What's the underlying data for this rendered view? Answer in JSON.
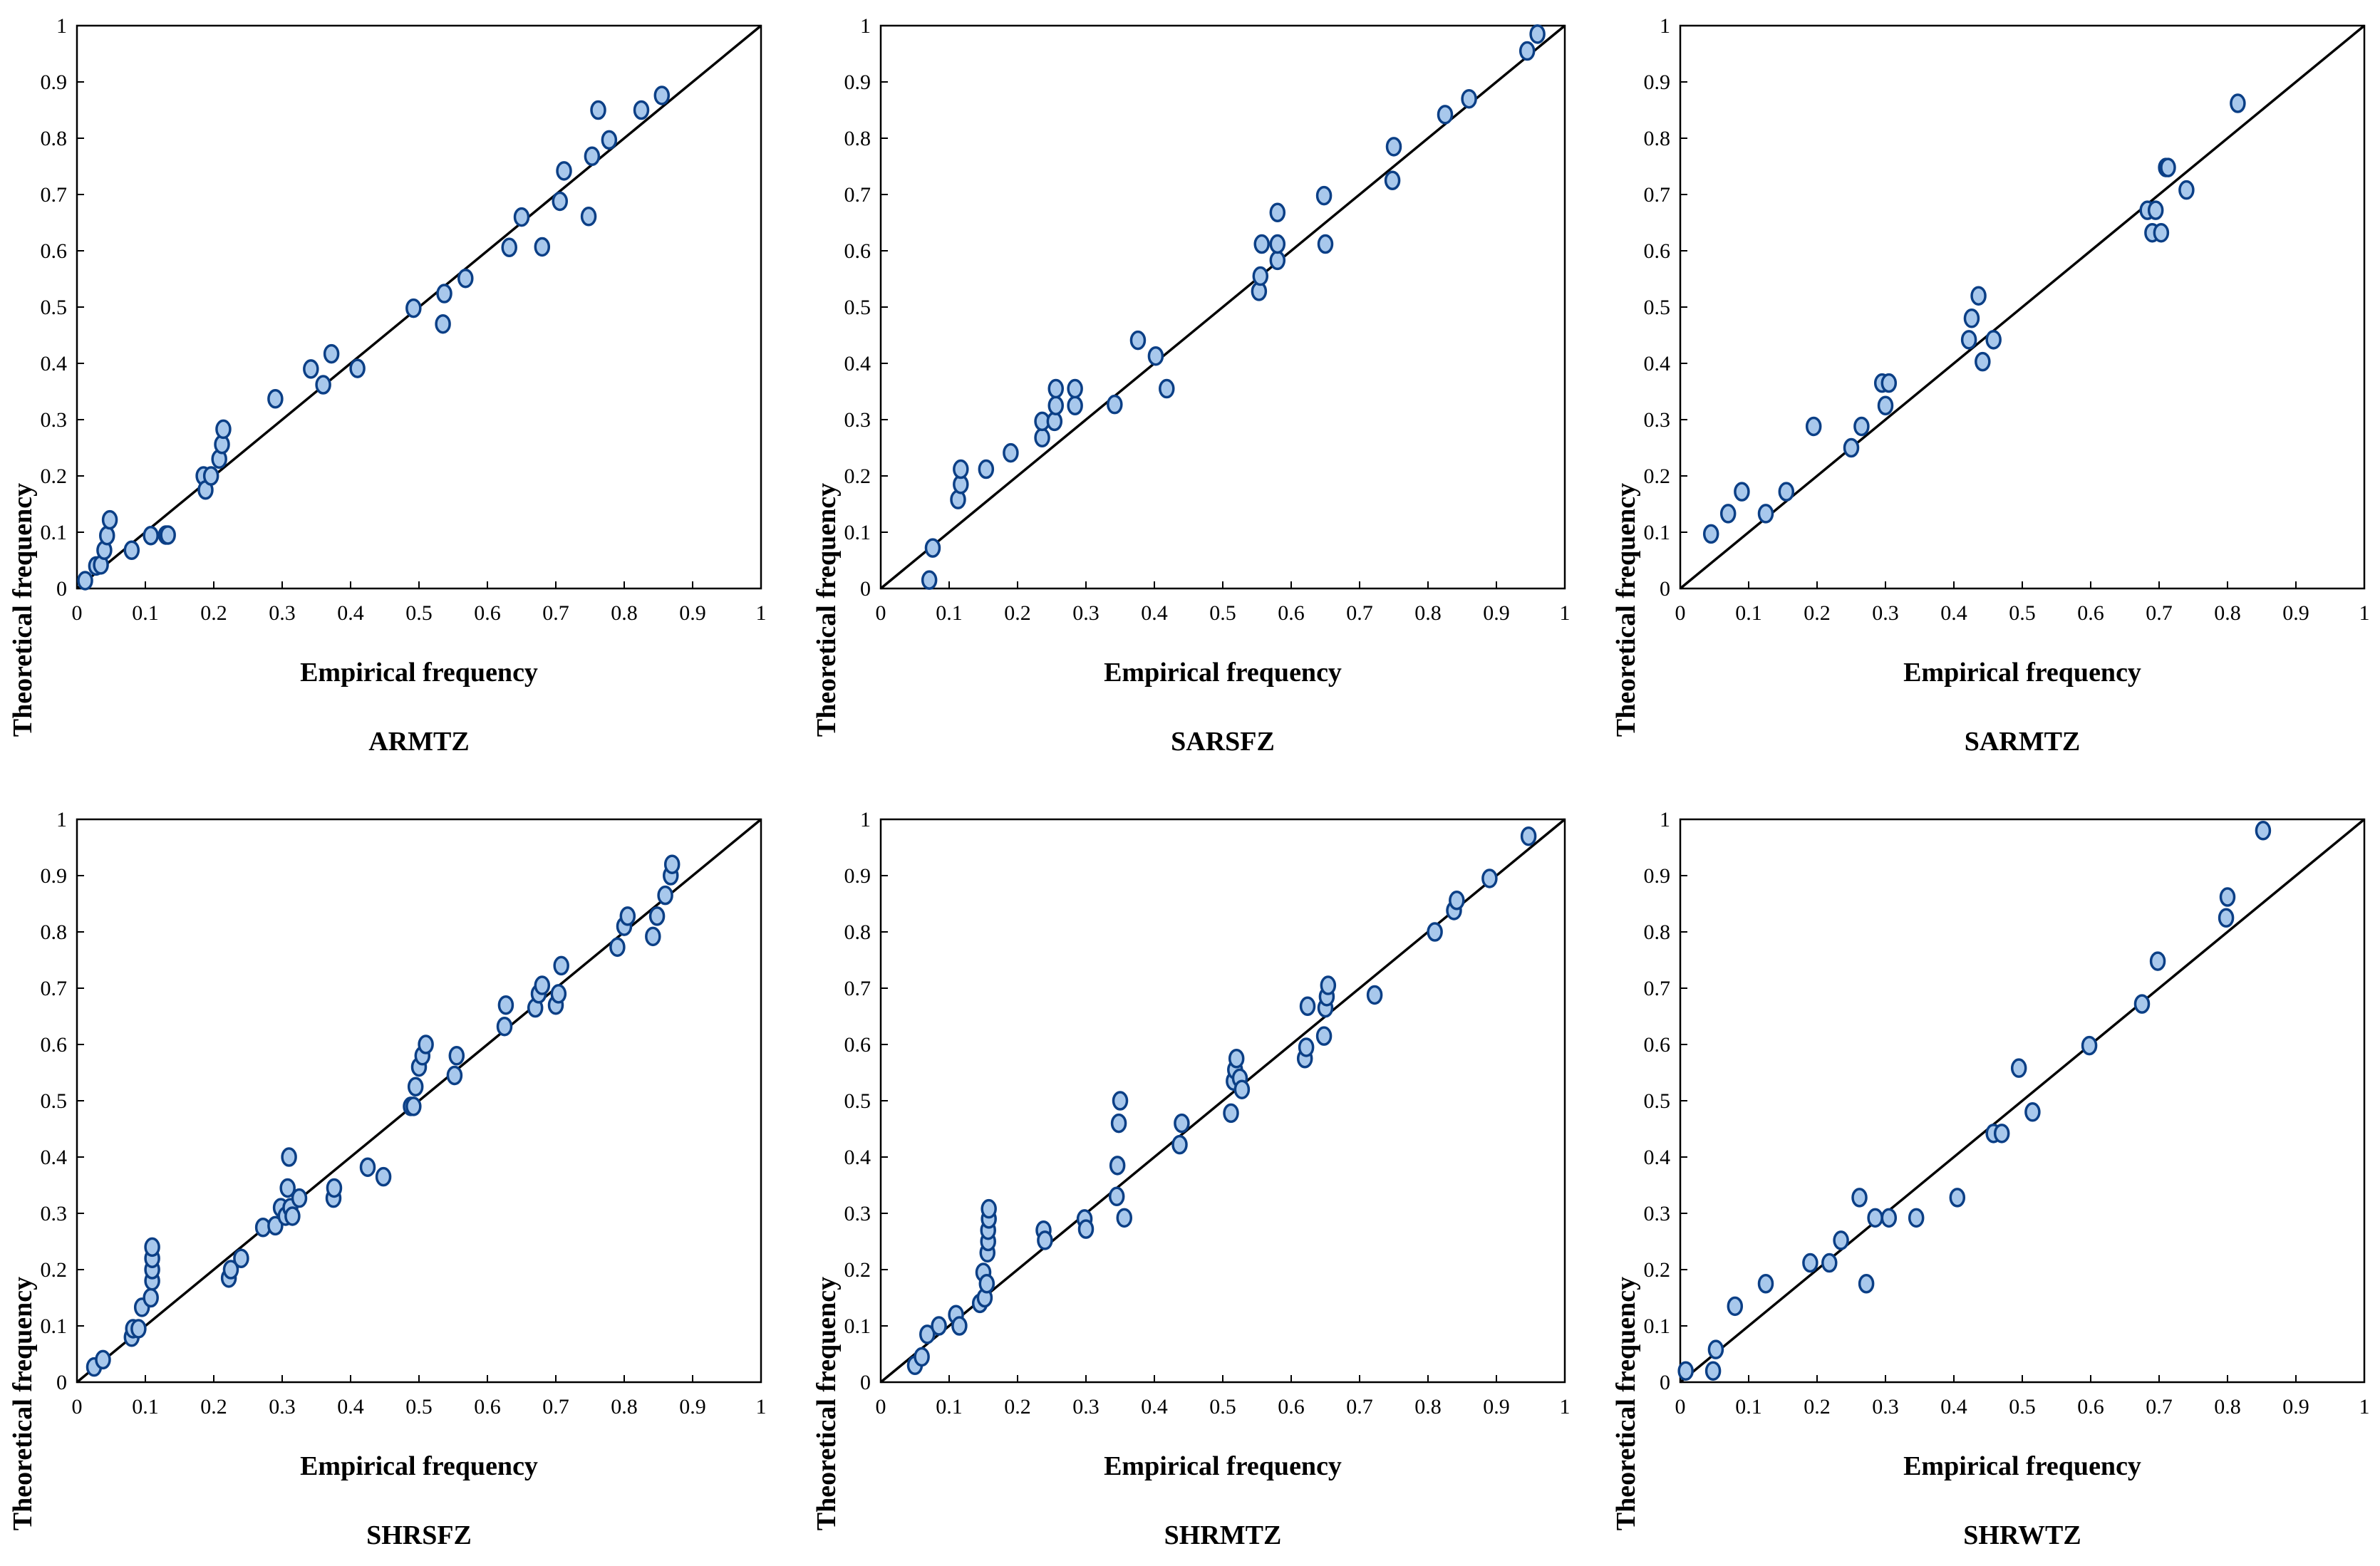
{
  "colors": {
    "marker_fill": "#a8c8ec",
    "marker_stroke": "#0b3f86",
    "line": "#000000",
    "axis": "#000000"
  },
  "chart_data": [
    {
      "type": "scatter",
      "title": "ARMTZ",
      "xlabel": "Empirical frequency",
      "ylabel": "Theoretical frequency",
      "xlim": [
        0,
        1
      ],
      "ylim": [
        0,
        1
      ],
      "xticks": [
        "0",
        "0.1",
        "0.2",
        "0.3",
        "0.4",
        "0.5",
        "0.6",
        "0.7",
        "0.8",
        "0.9",
        "1"
      ],
      "yticks": [
        "0",
        "0.1",
        "0.2",
        "0.3",
        "0.4",
        "0.5",
        "0.6",
        "0.7",
        "0.8",
        "0.9",
        "1"
      ],
      "reference_line": "y = x",
      "points": [
        [
          0.012,
          0.014
        ],
        [
          0.028,
          0.04
        ],
        [
          0.035,
          0.042
        ],
        [
          0.04,
          0.068
        ],
        [
          0.044,
          0.094
        ],
        [
          0.048,
          0.122
        ],
        [
          0.08,
          0.068
        ],
        [
          0.108,
          0.094
        ],
        [
          0.13,
          0.095
        ],
        [
          0.133,
          0.095
        ],
        [
          0.185,
          0.2
        ],
        [
          0.188,
          0.175
        ],
        [
          0.196,
          0.2
        ],
        [
          0.208,
          0.23
        ],
        [
          0.212,
          0.256
        ],
        [
          0.214,
          0.283
        ],
        [
          0.29,
          0.337
        ],
        [
          0.342,
          0.39
        ],
        [
          0.36,
          0.362
        ],
        [
          0.372,
          0.417
        ],
        [
          0.41,
          0.391
        ],
        [
          0.492,
          0.498
        ],
        [
          0.535,
          0.47
        ],
        [
          0.537,
          0.524
        ],
        [
          0.568,
          0.551
        ],
        [
          0.632,
          0.606
        ],
        [
          0.65,
          0.66
        ],
        [
          0.68,
          0.607
        ],
        [
          0.706,
          0.688
        ],
        [
          0.712,
          0.742
        ],
        [
          0.748,
          0.661
        ],
        [
          0.753,
          0.768
        ],
        [
          0.762,
          0.85
        ],
        [
          0.778,
          0.797
        ],
        [
          0.825,
          0.85
        ],
        [
          0.855,
          0.876
        ]
      ]
    },
    {
      "type": "scatter",
      "title": "SARSFZ",
      "xlabel": "Empirical frequency",
      "ylabel": "Theoretical frequency",
      "xlim": [
        0,
        1
      ],
      "ylim": [
        0,
        1
      ],
      "xticks": [
        "0",
        "0.1",
        "0.2",
        "0.3",
        "0.4",
        "0.5",
        "0.6",
        "0.7",
        "0.8",
        "0.9",
        "1"
      ],
      "yticks": [
        "0",
        "0.1",
        "0.2",
        "0.3",
        "0.4",
        "0.5",
        "0.6",
        "0.7",
        "0.8",
        "0.9",
        "1"
      ],
      "reference_line": "y = x",
      "points": [
        [
          0.071,
          0.015
        ],
        [
          0.076,
          0.072
        ],
        [
          0.113,
          0.158
        ],
        [
          0.117,
          0.185
        ],
        [
          0.117,
          0.212
        ],
        [
          0.154,
          0.212
        ],
        [
          0.19,
          0.241
        ],
        [
          0.236,
          0.268
        ],
        [
          0.236,
          0.297
        ],
        [
          0.254,
          0.297
        ],
        [
          0.256,
          0.325
        ],
        [
          0.256,
          0.355
        ],
        [
          0.284,
          0.325
        ],
        [
          0.284,
          0.355
        ],
        [
          0.342,
          0.327
        ],
        [
          0.376,
          0.441
        ],
        [
          0.402,
          0.413
        ],
        [
          0.418,
          0.355
        ],
        [
          0.553,
          0.528
        ],
        [
          0.555,
          0.555
        ],
        [
          0.557,
          0.612
        ],
        [
          0.58,
          0.583
        ],
        [
          0.58,
          0.612
        ],
        [
          0.58,
          0.668
        ],
        [
          0.648,
          0.698
        ],
        [
          0.65,
          0.612
        ],
        [
          0.748,
          0.725
        ],
        [
          0.75,
          0.785
        ],
        [
          0.825,
          0.842
        ],
        [
          0.86,
          0.87
        ],
        [
          0.945,
          0.955
        ],
        [
          0.96,
          0.985
        ]
      ]
    },
    {
      "type": "scatter",
      "title": "SARMTZ",
      "xlabel": "Empirical frequency",
      "ylabel": "Theoretical frequency",
      "xlim": [
        0,
        1
      ],
      "ylim": [
        0,
        1
      ],
      "xticks": [
        "0",
        "0.1",
        "0.2",
        "0.3",
        "0.4",
        "0.5",
        "0.6",
        "0.7",
        "0.8",
        "0.9",
        "1"
      ],
      "yticks": [
        "0",
        "0.1",
        "0.2",
        "0.3",
        "0.4",
        "0.5",
        "0.6",
        "0.7",
        "0.8",
        "0.9",
        "1"
      ],
      "reference_line": "y = x",
      "points": [
        [
          0.045,
          0.097
        ],
        [
          0.07,
          0.133
        ],
        [
          0.09,
          0.172
        ],
        [
          0.125,
          0.133
        ],
        [
          0.155,
          0.172
        ],
        [
          0.195,
          0.288
        ],
        [
          0.25,
          0.25
        ],
        [
          0.265,
          0.288
        ],
        [
          0.295,
          0.365
        ],
        [
          0.3,
          0.325
        ],
        [
          0.305,
          0.365
        ],
        [
          0.422,
          0.442
        ],
        [
          0.426,
          0.48
        ],
        [
          0.436,
          0.52
        ],
        [
          0.442,
          0.403
        ],
        [
          0.458,
          0.442
        ],
        [
          0.683,
          0.672
        ],
        [
          0.69,
          0.632
        ],
        [
          0.695,
          0.672
        ],
        [
          0.703,
          0.632
        ],
        [
          0.71,
          0.748
        ],
        [
          0.713,
          0.748
        ],
        [
          0.74,
          0.708
        ],
        [
          0.815,
          0.862
        ]
      ]
    },
    {
      "type": "scatter",
      "title": "SHRSFZ",
      "xlabel": "Empirical frequency",
      "ylabel": "Theoretical frequency",
      "xlim": [
        0,
        1
      ],
      "ylim": [
        0,
        1
      ],
      "xticks": [
        "0",
        "0.1",
        "0.2",
        "0.3",
        "0.4",
        "0.5",
        "0.6",
        "0.7",
        "0.8",
        "0.9",
        "1"
      ],
      "yticks": [
        "0",
        "0.1",
        "0.2",
        "0.3",
        "0.4",
        "0.5",
        "0.6",
        "0.7",
        "0.8",
        "0.9",
        "1"
      ],
      "reference_line": "y = x",
      "points": [
        [
          0.025,
          0.027
        ],
        [
          0.038,
          0.04
        ],
        [
          0.08,
          0.08
        ],
        [
          0.082,
          0.095
        ],
        [
          0.09,
          0.095
        ],
        [
          0.095,
          0.133
        ],
        [
          0.108,
          0.15
        ],
        [
          0.11,
          0.18
        ],
        [
          0.11,
          0.2
        ],
        [
          0.11,
          0.22
        ],
        [
          0.11,
          0.24
        ],
        [
          0.222,
          0.185
        ],
        [
          0.225,
          0.2
        ],
        [
          0.24,
          0.22
        ],
        [
          0.272,
          0.275
        ],
        [
          0.29,
          0.278
        ],
        [
          0.298,
          0.31
        ],
        [
          0.305,
          0.295
        ],
        [
          0.308,
          0.345
        ],
        [
          0.31,
          0.4
        ],
        [
          0.312,
          0.31
        ],
        [
          0.315,
          0.295
        ],
        [
          0.325,
          0.327
        ],
        [
          0.375,
          0.327
        ],
        [
          0.376,
          0.345
        ],
        [
          0.425,
          0.382
        ],
        [
          0.448,
          0.365
        ],
        [
          0.488,
          0.49
        ],
        [
          0.492,
          0.49
        ],
        [
          0.495,
          0.525
        ],
        [
          0.5,
          0.56
        ],
        [
          0.505,
          0.58
        ],
        [
          0.51,
          0.6
        ],
        [
          0.552,
          0.545
        ],
        [
          0.555,
          0.58
        ],
        [
          0.625,
          0.632
        ],
        [
          0.627,
          0.67
        ],
        [
          0.67,
          0.665
        ],
        [
          0.675,
          0.69
        ],
        [
          0.68,
          0.705
        ],
        [
          0.7,
          0.67
        ],
        [
          0.704,
          0.69
        ],
        [
          0.708,
          0.74
        ],
        [
          0.79,
          0.773
        ],
        [
          0.8,
          0.81
        ],
        [
          0.805,
          0.828
        ],
        [
          0.842,
          0.792
        ],
        [
          0.848,
          0.828
        ],
        [
          0.86,
          0.865
        ],
        [
          0.868,
          0.9
        ],
        [
          0.87,
          0.92
        ]
      ]
    },
    {
      "type": "scatter",
      "title": "SHRMTZ",
      "xlabel": "Empirical frequency",
      "ylabel": "Theoretical frequency",
      "xlim": [
        0,
        1
      ],
      "ylim": [
        0,
        1
      ],
      "xticks": [
        "0",
        "0.1",
        "0.2",
        "0.3",
        "0.4",
        "0.5",
        "0.6",
        "0.7",
        "0.8",
        "0.9",
        "1"
      ],
      "yticks": [
        "0",
        "0.1",
        "0.2",
        "0.3",
        "0.4",
        "0.5",
        "0.6",
        "0.7",
        "0.8",
        "0.9",
        "1"
      ],
      "reference_line": "y = x",
      "points": [
        [
          0.05,
          0.03
        ],
        [
          0.06,
          0.045
        ],
        [
          0.068,
          0.085
        ],
        [
          0.085,
          0.1
        ],
        [
          0.11,
          0.12
        ],
        [
          0.115,
          0.1
        ],
        [
          0.145,
          0.14
        ],
        [
          0.15,
          0.195
        ],
        [
          0.152,
          0.15
        ],
        [
          0.155,
          0.175
        ],
        [
          0.156,
          0.23
        ],
        [
          0.157,
          0.25
        ],
        [
          0.157,
          0.27
        ],
        [
          0.158,
          0.29
        ],
        [
          0.158,
          0.308
        ],
        [
          0.238,
          0.27
        ],
        [
          0.24,
          0.252
        ],
        [
          0.298,
          0.29
        ],
        [
          0.3,
          0.272
        ],
        [
          0.345,
          0.33
        ],
        [
          0.346,
          0.385
        ],
        [
          0.348,
          0.46
        ],
        [
          0.35,
          0.5
        ],
        [
          0.356,
          0.292
        ],
        [
          0.437,
          0.422
        ],
        [
          0.44,
          0.46
        ],
        [
          0.512,
          0.478
        ],
        [
          0.516,
          0.535
        ],
        [
          0.518,
          0.555
        ],
        [
          0.52,
          0.575
        ],
        [
          0.525,
          0.54
        ],
        [
          0.528,
          0.52
        ],
        [
          0.62,
          0.575
        ],
        [
          0.622,
          0.595
        ],
        [
          0.624,
          0.668
        ],
        [
          0.648,
          0.615
        ],
        [
          0.65,
          0.665
        ],
        [
          0.652,
          0.685
        ],
        [
          0.654,
          0.705
        ],
        [
          0.722,
          0.688
        ],
        [
          0.81,
          0.8
        ],
        [
          0.838,
          0.838
        ],
        [
          0.842,
          0.856
        ],
        [
          0.89,
          0.895
        ],
        [
          0.947,
          0.97
        ]
      ]
    },
    {
      "type": "scatter",
      "title": "SHRWTZ",
      "xlabel": "Empirical frequency",
      "ylabel": "Theoretical frequency",
      "xlim": [
        0,
        1
      ],
      "ylim": [
        0,
        1
      ],
      "xticks": [
        "0",
        "0.1",
        "0.2",
        "0.3",
        "0.4",
        "0.5",
        "0.6",
        "0.7",
        "0.8",
        "0.9",
        "1"
      ],
      "yticks": [
        "0",
        "0.1",
        "0.2",
        "0.3",
        "0.4",
        "0.5",
        "0.6",
        "0.7",
        "0.8",
        "0.9",
        "1"
      ],
      "reference_line": "y = x",
      "points": [
        [
          0.008,
          0.02
        ],
        [
          0.048,
          0.02
        ],
        [
          0.052,
          0.058
        ],
        [
          0.08,
          0.135
        ],
        [
          0.125,
          0.175
        ],
        [
          0.19,
          0.212
        ],
        [
          0.218,
          0.212
        ],
        [
          0.235,
          0.252
        ],
        [
          0.262,
          0.328
        ],
        [
          0.272,
          0.175
        ],
        [
          0.285,
          0.292
        ],
        [
          0.305,
          0.292
        ],
        [
          0.345,
          0.292
        ],
        [
          0.405,
          0.328
        ],
        [
          0.458,
          0.442
        ],
        [
          0.47,
          0.442
        ],
        [
          0.495,
          0.558
        ],
        [
          0.515,
          0.48
        ],
        [
          0.598,
          0.598
        ],
        [
          0.675,
          0.672
        ],
        [
          0.698,
          0.748
        ],
        [
          0.798,
          0.825
        ],
        [
          0.8,
          0.862
        ],
        [
          0.852,
          0.98
        ]
      ]
    }
  ]
}
